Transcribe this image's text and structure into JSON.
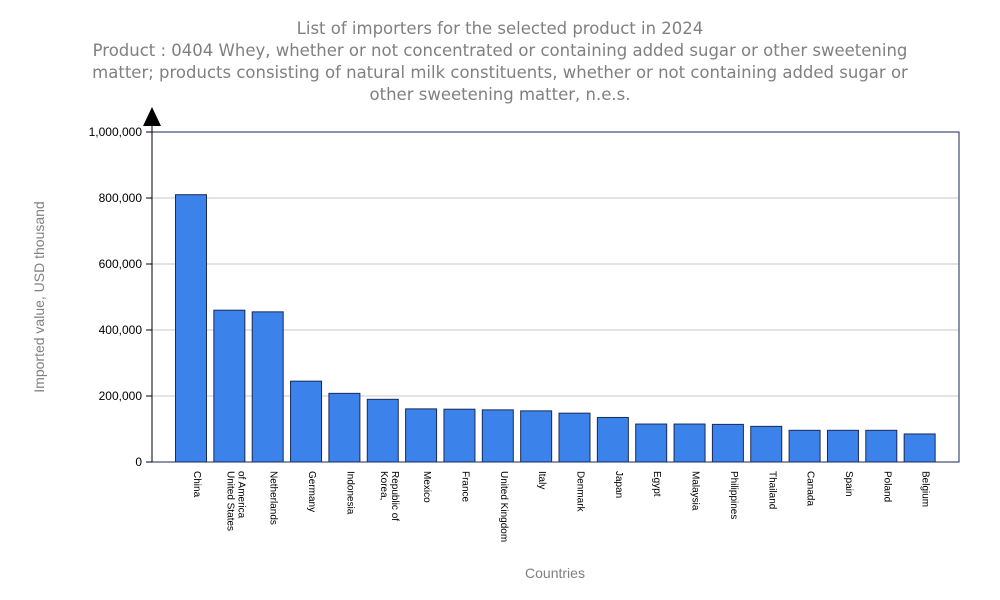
{
  "chart_data": {
    "type": "bar",
    "title": "List of importers for the selected product in 2024",
    "subtitle_lines": [
      "Product : 0404 Whey, whether or not concentrated or containing added sugar or other sweetening",
      "matter; products consisting of natural milk constituents, whether or not containing added sugar or",
      "other sweetening matter, n.e.s."
    ],
    "xlabel": "Countries",
    "ylabel": "Imported value, USD thousand",
    "ylim": [
      0,
      1000000
    ],
    "yticks": [
      "0",
      "200,000",
      "400,000",
      "600,000",
      "800,000",
      "1,000,000"
    ],
    "ytick_values": [
      0,
      200000,
      400000,
      600000,
      800000,
      1000000
    ],
    "grid": true,
    "categories": [
      [
        "China"
      ],
      [
        "United States",
        "of America"
      ],
      [
        "Netherlands"
      ],
      [
        "Germany"
      ],
      [
        "Indonesia"
      ],
      [
        "Korea,",
        "Republic of"
      ],
      [
        "Mexico"
      ],
      [
        "France"
      ],
      [
        "United Kingdom"
      ],
      [
        "Italy"
      ],
      [
        "Denmark"
      ],
      [
        "Japan"
      ],
      [
        "Egypt"
      ],
      [
        "Malaysia"
      ],
      [
        "Philippines"
      ],
      [
        "Thailand"
      ],
      [
        "Canada"
      ],
      [
        "Spain"
      ],
      [
        "Poland"
      ],
      [
        "Belgium"
      ]
    ],
    "values": [
      810000,
      460000,
      455000,
      245000,
      208000,
      190000,
      161000,
      160000,
      158000,
      155000,
      148000,
      135000,
      115000,
      115000,
      114000,
      108000,
      96000,
      96000,
      96000,
      85000
    ],
    "bar_color": "#3b82eb"
  }
}
